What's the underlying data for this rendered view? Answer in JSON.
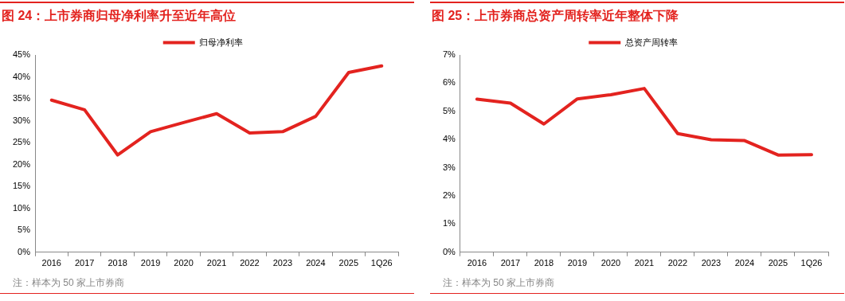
{
  "chart_data": [
    {
      "type": "line",
      "title": "图 24：上市券商归母净利率升至近年高位",
      "categories": [
        "2016",
        "2017",
        "2018",
        "2019",
        "2020",
        "2021",
        "2022",
        "2023",
        "2024",
        "2025",
        "1Q26"
      ],
      "series": [
        {
          "name": "归母净利率",
          "color": "#e3231f",
          "values": [
            34.7,
            32.5,
            22.2,
            27.5,
            29.6,
            31.6,
            27.2,
            27.5,
            31.0,
            41.0,
            42.5
          ]
        }
      ],
      "ylim": [
        0,
        45
      ],
      "yticks": [
        {
          "value": 0,
          "label": "0%"
        },
        {
          "value": 5,
          "label": "5%"
        },
        {
          "value": 10,
          "label": "10%"
        },
        {
          "value": 15,
          "label": "15%"
        },
        {
          "value": 20,
          "label": "20%"
        },
        {
          "value": 25,
          "label": "25%"
        },
        {
          "value": 30,
          "label": "30%"
        },
        {
          "value": 35,
          "label": "35%"
        },
        {
          "value": 40,
          "label": "40%"
        },
        {
          "value": 45,
          "label": "45%"
        }
      ],
      "legend": "top",
      "marker": "none",
      "line_style": "solid",
      "annotations": [
        "注：样本为 50 家上市券商"
      ]
    },
    {
      "type": "line",
      "title": "图 25：上市券商总资产周转率近年整体下降",
      "categories": [
        "2016",
        "2017",
        "2018",
        "2019",
        "2020",
        "2021",
        "2022",
        "2023",
        "2024",
        "2025",
        "1Q26"
      ],
      "series": [
        {
          "name": "总资产周转率",
          "color": "#e3231f",
          "values": [
            5.43,
            5.29,
            4.55,
            5.44,
            5.59,
            5.81,
            4.21,
            3.99,
            3.96,
            3.45,
            3.46
          ]
        }
      ],
      "ylim": [
        0,
        7
      ],
      "yticks": [
        {
          "value": 0,
          "label": "0%"
        },
        {
          "value": 1,
          "label": "1%"
        },
        {
          "value": 2,
          "label": "2%"
        },
        {
          "value": 3,
          "label": "3%"
        },
        {
          "value": 4,
          "label": "4%"
        },
        {
          "value": 5,
          "label": "5%"
        },
        {
          "value": 6,
          "label": "6%"
        },
        {
          "value": 7,
          "label": "7%"
        }
      ],
      "legend": "top",
      "marker": "none",
      "line_style": "solid",
      "annotations": [
        "注：样本为 50 家上市券商"
      ]
    }
  ]
}
